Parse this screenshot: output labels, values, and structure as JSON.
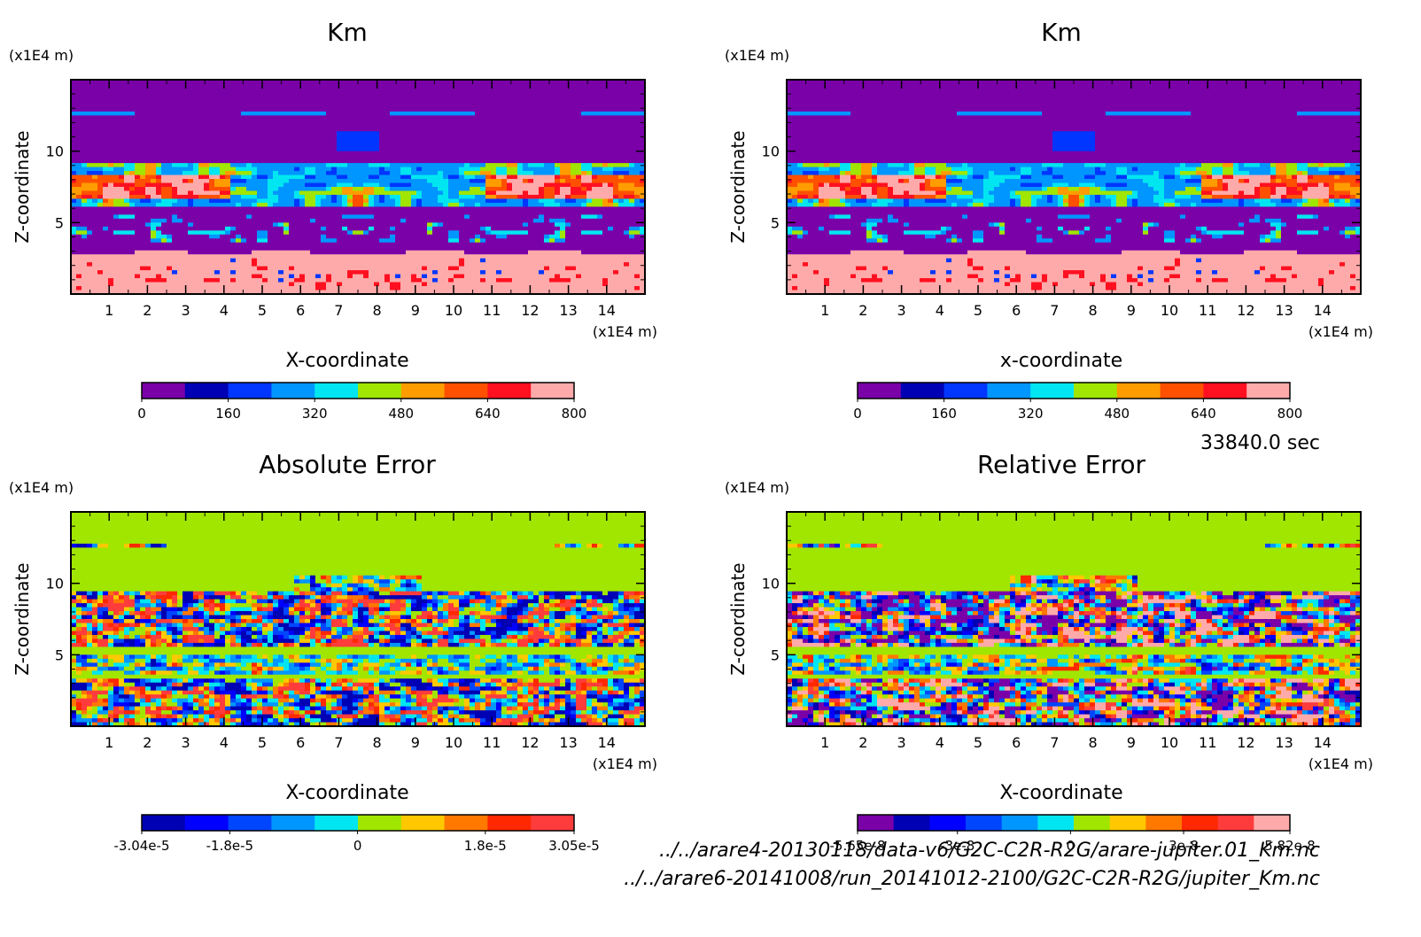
{
  "chart_data": [
    {
      "type": "heatmap",
      "title": "Km",
      "xlabel": "X-coordinate",
      "ylabel": "Z-coordinate",
      "x_unit": "(x1E4 m)",
      "y_unit": "(x1E4 m)",
      "xlim": [
        0,
        15
      ],
      "ylim": [
        0,
        15
      ],
      "x_ticks": [
        "1",
        "2",
        "3",
        "4",
        "5",
        "6",
        "7",
        "8",
        "9",
        "10",
        "11",
        "12",
        "13",
        "14"
      ],
      "y_ticks": [
        "5",
        "10"
      ],
      "colorbar": {
        "colors": [
          "#7a00a8",
          "#0000b4",
          "#0036ff",
          "#0096ff",
          "#00e6f0",
          "#a0e600",
          "#ff9c00",
          "#ff5000",
          "#ff1020",
          "#ffaaaa"
        ],
        "tick_labels": [
          "0",
          "160",
          "320",
          "480",
          "640",
          "800"
        ],
        "min": 0,
        "max": 800
      },
      "field": "km"
    },
    {
      "type": "heatmap",
      "title": "Km",
      "xlabel": "x-coordinate",
      "ylabel": "Z-coordinate",
      "x_unit": "(x1E4 m)",
      "y_unit": "(x1E4 m)",
      "xlim": [
        0,
        15
      ],
      "ylim": [
        0,
        15
      ],
      "x_ticks": [
        "1",
        "2",
        "3",
        "4",
        "5",
        "6",
        "7",
        "8",
        "9",
        "10",
        "11",
        "12",
        "13",
        "14"
      ],
      "y_ticks": [
        "5",
        "10"
      ],
      "colorbar": {
        "colors": [
          "#7a00a8",
          "#0000b4",
          "#0036ff",
          "#0096ff",
          "#00e6f0",
          "#a0e600",
          "#ff9c00",
          "#ff5000",
          "#ff1020",
          "#ffaaaa"
        ],
        "tick_labels": [
          "0",
          "160",
          "320",
          "480",
          "640",
          "800"
        ],
        "min": 0,
        "max": 800
      },
      "field": "km"
    },
    {
      "type": "heatmap",
      "title": "Absolute Error",
      "xlabel": "X-coordinate",
      "ylabel": "Z-coordinate",
      "x_unit": "(x1E4 m)",
      "y_unit": "(x1E4 m)",
      "xlim": [
        0,
        15
      ],
      "ylim": [
        0,
        15
      ],
      "x_ticks": [
        "1",
        "2",
        "3",
        "4",
        "5",
        "6",
        "7",
        "8",
        "9",
        "10",
        "11",
        "12",
        "13",
        "14"
      ],
      "y_ticks": [
        "5",
        "10"
      ],
      "colorbar": {
        "colors": [
          "#0000b4",
          "#0000ff",
          "#0046ff",
          "#0096ff",
          "#00e6f0",
          "#a0e600",
          "#ffc800",
          "#ff7800",
          "#ff2800",
          "#ff3c3c"
        ],
        "tick_labels": [
          "-3.04e-5",
          "-1.8e-5",
          "0",
          "1.8e-5",
          "3.05e-5"
        ],
        "min": -3.04e-05,
        "max": 3.05e-05
      },
      "field": "err"
    },
    {
      "type": "heatmap",
      "title": "Relative Error",
      "xlabel": "X-coordinate",
      "ylabel": "Z-coordinate",
      "x_unit": "(x1E4 m)",
      "y_unit": "(x1E4 m)",
      "xlim": [
        0,
        15
      ],
      "ylim": [
        0,
        15
      ],
      "x_ticks": [
        "1",
        "2",
        "3",
        "4",
        "5",
        "6",
        "7",
        "8",
        "9",
        "10",
        "11",
        "12",
        "13",
        "14"
      ],
      "y_ticks": [
        "5",
        "10"
      ],
      "colorbar": {
        "colors": [
          "#7a00a8",
          "#0000b4",
          "#0000ff",
          "#0046ff",
          "#0096ff",
          "#00e6f0",
          "#a0e600",
          "#ffc800",
          "#ff7800",
          "#ff2800",
          "#ff3c3c",
          "#ffaaaa"
        ],
        "tick_labels": [
          "-5.65e-8",
          "-3e-8",
          "0",
          "3e-8",
          "5.82e-8"
        ],
        "min": -5.65e-08,
        "max": 5.82e-08
      },
      "field": "err2"
    }
  ],
  "time_label": "33840.0 sec",
  "files": [
    "../../arare4-20130118/data-v6/G2C-C2R-R2G/arare-jupiter.01_Km.nc",
    "../../arare6-20141008/run_20141012-2100/G2C-C2R-R2G/jupiter_Km.nc"
  ]
}
